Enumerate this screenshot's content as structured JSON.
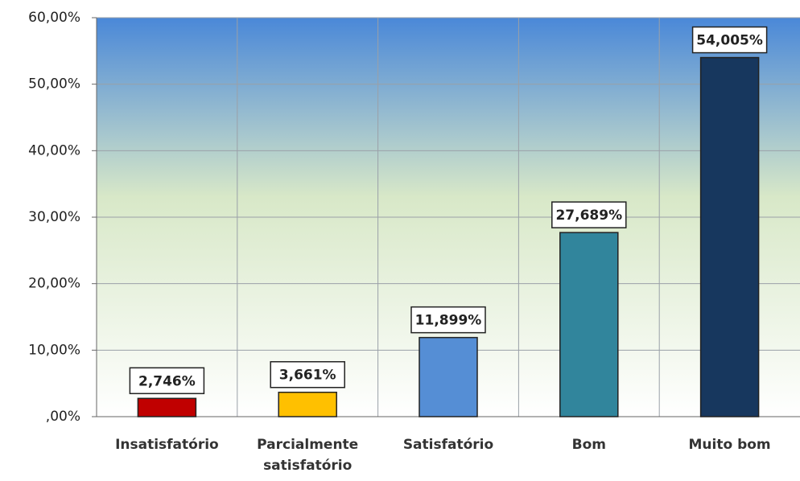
{
  "chart_data": {
    "type": "bar",
    "categories": [
      "Insatisfatório",
      "Parcialmente satisfatório",
      "Satisfatório",
      "Bom",
      "Muito bom"
    ],
    "values": [
      2.746,
      3.661,
      11.899,
      27.689,
      54.005
    ],
    "value_labels": [
      "2,746%",
      "3,661%",
      "11,899%",
      "27,689%",
      "54,005%"
    ],
    "colors": [
      "#c00000",
      "#ffc000",
      "#558ed5",
      "#31859c",
      "#17375e"
    ],
    "ylim": [
      0,
      60
    ],
    "yticks": [
      {
        "value": 0,
        "label": ",00%"
      },
      {
        "value": 10,
        "label": "10,00%"
      },
      {
        "value": 20,
        "label": "20,00%"
      },
      {
        "value": 30,
        "label": "30,00%"
      },
      {
        "value": 40,
        "label": "40,00%"
      },
      {
        "value": 50,
        "label": "50,00%"
      },
      {
        "value": 60,
        "label": "60,00%"
      }
    ],
    "grid": true
  }
}
